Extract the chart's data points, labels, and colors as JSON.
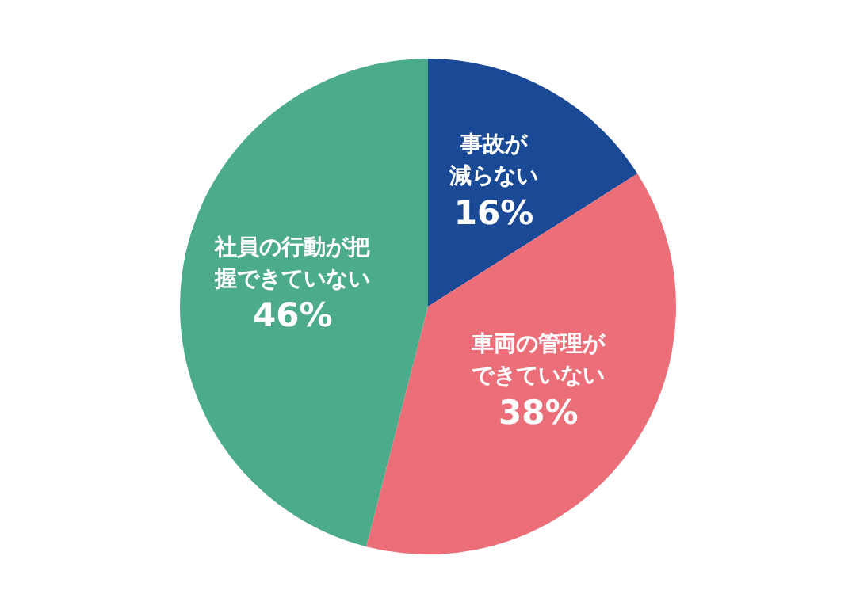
{
  "chart_data": {
    "type": "pie",
    "categories": [
      "事故が減らない",
      "車両の管理ができていない",
      "社員の行動が把握できていない"
    ],
    "values": [
      16,
      38,
      46
    ],
    "value_labels": [
      "16%",
      "38%",
      "46%"
    ],
    "colors": [
      "#1a4a96",
      "#ec6e79",
      "#4cab8a"
    ],
    "legend": false
  }
}
